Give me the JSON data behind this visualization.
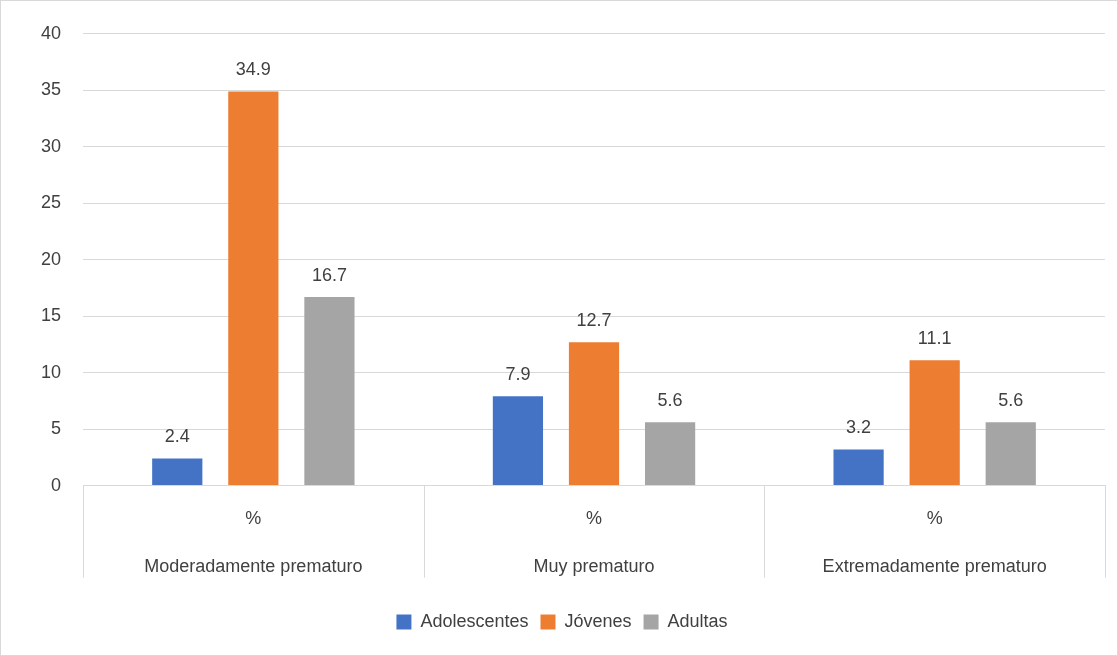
{
  "chart_data": {
    "type": "bar",
    "categories": [
      "%\nModeradamente prematuro",
      "%\nMuy prematuro",
      "%\nExtremadamente prematuro"
    ],
    "series": [
      {
        "name": "Adolescentes",
        "color": "#4472c4",
        "values": [
          2.4,
          7.9,
          3.2
        ]
      },
      {
        "name": "Jóvenes",
        "color": "#ed7d31",
        "values": [
          34.9,
          12.7,
          11.1
        ]
      },
      {
        "name": "Adultas",
        "color": "#a5a5a5",
        "values": [
          16.7,
          5.6,
          5.6
        ]
      }
    ],
    "ylim": [
      0,
      40
    ],
    "yticks": [
      0,
      5,
      10,
      15,
      20,
      25,
      30,
      35,
      40
    ],
    "grid": "y",
    "legend": "bottom",
    "data_labels": true
  }
}
